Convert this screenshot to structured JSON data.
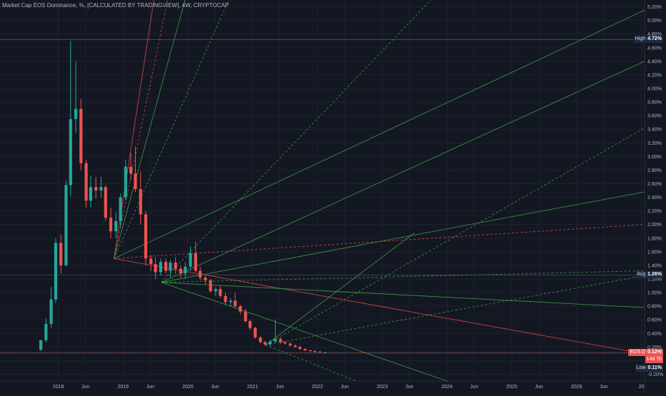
{
  "chart_data": {
    "type": "candlestick",
    "title": "Market Cap EOS Dominance, %",
    "subtitle_parts": [
      "[CALCULATED BY TRADINGVIEW]",
      "4W",
      "CRYPTOCAP"
    ],
    "y_unit": "%",
    "ylim": [
      -0.3,
      5.3
    ],
    "y_ticks": [
      "5.20%",
      "5.00%",
      "4.80%",
      "4.60%",
      "4.40%",
      "4.20%",
      "4.00%",
      "3.80%",
      "3.60%",
      "3.40%",
      "3.20%",
      "3.00%",
      "2.80%",
      "2.60%",
      "2.40%",
      "2.20%",
      "2.00%",
      "1.80%",
      "1.60%",
      "1.40%",
      "1.20%",
      "1.00%",
      "0.80%",
      "0.60%",
      "0.40%",
      "0.20%",
      "0.00%",
      "-0.20%"
    ],
    "y_tick_values": [
      5.2,
      5.0,
      4.8,
      4.6,
      4.4,
      4.2,
      4.0,
      3.8,
      3.6,
      3.4,
      3.2,
      3.0,
      2.8,
      2.6,
      2.4,
      2.2,
      2.0,
      1.8,
      1.6,
      1.4,
      1.2,
      1.0,
      0.8,
      0.6,
      0.4,
      0.2,
      0.0,
      -0.2
    ],
    "x_ticks": [
      "2018",
      "Jun",
      "2019",
      "Jun",
      "2020",
      "Jun",
      "2021",
      "Jun",
      "2022",
      "Jun",
      "2023",
      "Jun",
      "2024",
      "Jun",
      "2025",
      "Jun",
      "2026",
      "Jun",
      "20"
    ],
    "x_tick_values": [
      2018.0,
      2018.42,
      2019.0,
      2019.42,
      2020.0,
      2020.42,
      2021.0,
      2021.42,
      2022.0,
      2022.42,
      2023.0,
      2023.42,
      2024.0,
      2024.42,
      2025.0,
      2025.42,
      2026.0,
      2026.42,
      2027.0
    ],
    "xlim": [
      2017.1,
      2027.05
    ],
    "colors": {
      "up": "#26a69a",
      "down": "#ef5350",
      "bg": "#131722",
      "grid": "#1e2230",
      "text": "#b2b5be",
      "fan_green": "#3b9b45",
      "fan_red": "#e04545",
      "tag_bg": "#1f2a44"
    },
    "candles": [
      {
        "t": 2017.73,
        "o": 0.16,
        "h": 0.3,
        "l": 0.14,
        "c": 0.3
      },
      {
        "t": 2017.81,
        "o": 0.3,
        "h": 0.62,
        "l": 0.27,
        "c": 0.54
      },
      {
        "t": 2017.89,
        "o": 0.54,
        "h": 1.08,
        "l": 0.48,
        "c": 0.9
      },
      {
        "t": 2017.96,
        "o": 0.9,
        "h": 1.8,
        "l": 0.85,
        "c": 1.73
      },
      {
        "t": 2018.04,
        "o": 1.73,
        "h": 1.85,
        "l": 1.28,
        "c": 1.4
      },
      {
        "t": 2018.12,
        "o": 1.4,
        "h": 2.65,
        "l": 1.38,
        "c": 2.58
      },
      {
        "t": 2018.19,
        "o": 2.58,
        "h": 4.7,
        "l": 2.42,
        "c": 3.55
      },
      {
        "t": 2018.27,
        "o": 3.55,
        "h": 4.4,
        "l": 3.35,
        "c": 3.7
      },
      {
        "t": 2018.35,
        "o": 3.7,
        "h": 3.85,
        "l": 2.8,
        "c": 2.9
      },
      {
        "t": 2018.43,
        "o": 2.9,
        "h": 2.95,
        "l": 2.25,
        "c": 2.35
      },
      {
        "t": 2018.5,
        "o": 2.35,
        "h": 2.72,
        "l": 2.25,
        "c": 2.55
      },
      {
        "t": 2018.58,
        "o": 2.55,
        "h": 2.7,
        "l": 2.38,
        "c": 2.5
      },
      {
        "t": 2018.66,
        "o": 2.5,
        "h": 2.7,
        "l": 2.4,
        "c": 2.55
      },
      {
        "t": 2018.73,
        "o": 2.55,
        "h": 2.58,
        "l": 2.05,
        "c": 2.1
      },
      {
        "t": 2018.81,
        "o": 2.1,
        "h": 2.25,
        "l": 1.8,
        "c": 1.9
      },
      {
        "t": 2018.89,
        "o": 1.9,
        "h": 2.18,
        "l": 1.8,
        "c": 2.05
      },
      {
        "t": 2018.96,
        "o": 2.05,
        "h": 2.45,
        "l": 1.95,
        "c": 2.4
      },
      {
        "t": 2019.04,
        "o": 2.4,
        "h": 2.95,
        "l": 2.35,
        "c": 2.85
      },
      {
        "t": 2019.12,
        "o": 2.85,
        "h": 3.05,
        "l": 2.65,
        "c": 2.75
      },
      {
        "t": 2019.19,
        "o": 2.75,
        "h": 3.15,
        "l": 2.48,
        "c": 2.52
      },
      {
        "t": 2019.27,
        "o": 2.52,
        "h": 2.78,
        "l": 2.0,
        "c": 2.15
      },
      {
        "t": 2019.35,
        "o": 2.15,
        "h": 2.2,
        "l": 1.4,
        "c": 1.5
      },
      {
        "t": 2019.43,
        "o": 1.5,
        "h": 1.55,
        "l": 1.32,
        "c": 1.42
      },
      {
        "t": 2019.5,
        "o": 1.42,
        "h": 1.52,
        "l": 1.2,
        "c": 1.3
      },
      {
        "t": 2019.58,
        "o": 1.3,
        "h": 1.5,
        "l": 1.25,
        "c": 1.45
      },
      {
        "t": 2019.66,
        "o": 1.45,
        "h": 1.5,
        "l": 1.28,
        "c": 1.32
      },
      {
        "t": 2019.73,
        "o": 1.32,
        "h": 1.48,
        "l": 1.22,
        "c": 1.44
      },
      {
        "t": 2019.81,
        "o": 1.44,
        "h": 1.52,
        "l": 1.28,
        "c": 1.35
      },
      {
        "t": 2019.89,
        "o": 1.35,
        "h": 1.4,
        "l": 1.22,
        "c": 1.28
      },
      {
        "t": 2019.96,
        "o": 1.28,
        "h": 1.45,
        "l": 1.2,
        "c": 1.38
      },
      {
        "t": 2020.04,
        "o": 1.38,
        "h": 1.68,
        "l": 1.32,
        "c": 1.58
      },
      {
        "t": 2020.12,
        "o": 1.58,
        "h": 1.75,
        "l": 1.3,
        "c": 1.32
      },
      {
        "t": 2020.19,
        "o": 1.32,
        "h": 1.38,
        "l": 1.18,
        "c": 1.22
      },
      {
        "t": 2020.27,
        "o": 1.22,
        "h": 1.25,
        "l": 1.12,
        "c": 1.18
      },
      {
        "t": 2020.35,
        "o": 1.18,
        "h": 1.2,
        "l": 1.0,
        "c": 1.02
      },
      {
        "t": 2020.43,
        "o": 1.02,
        "h": 1.08,
        "l": 0.95,
        "c": 1.05
      },
      {
        "t": 2020.5,
        "o": 1.05,
        "h": 1.1,
        "l": 0.92,
        "c": 0.95
      },
      {
        "t": 2020.58,
        "o": 0.95,
        "h": 1.0,
        "l": 0.82,
        "c": 0.86
      },
      {
        "t": 2020.66,
        "o": 0.86,
        "h": 0.92,
        "l": 0.8,
        "c": 0.88
      },
      {
        "t": 2020.73,
        "o": 0.88,
        "h": 1.0,
        "l": 0.78,
        "c": 0.8
      },
      {
        "t": 2020.81,
        "o": 0.8,
        "h": 0.82,
        "l": 0.68,
        "c": 0.72
      },
      {
        "t": 2020.89,
        "o": 0.72,
        "h": 0.76,
        "l": 0.56,
        "c": 0.58
      },
      {
        "t": 2020.96,
        "o": 0.58,
        "h": 0.6,
        "l": 0.45,
        "c": 0.48
      },
      {
        "t": 2021.04,
        "o": 0.48,
        "h": 0.5,
        "l": 0.32,
        "c": 0.34
      },
      {
        "t": 2021.12,
        "o": 0.34,
        "h": 0.36,
        "l": 0.26,
        "c": 0.27
      },
      {
        "t": 2021.19,
        "o": 0.27,
        "h": 0.29,
        "l": 0.22,
        "c": 0.24
      },
      {
        "t": 2021.27,
        "o": 0.24,
        "h": 0.3,
        "l": 0.21,
        "c": 0.28
      },
      {
        "t": 2021.35,
        "o": 0.28,
        "h": 0.6,
        "l": 0.27,
        "c": 0.32
      },
      {
        "t": 2021.43,
        "o": 0.32,
        "h": 0.34,
        "l": 0.25,
        "c": 0.27
      },
      {
        "t": 2021.5,
        "o": 0.27,
        "h": 0.29,
        "l": 0.24,
        "c": 0.25
      },
      {
        "t": 2021.58,
        "o": 0.25,
        "h": 0.27,
        "l": 0.21,
        "c": 0.22
      },
      {
        "t": 2021.66,
        "o": 0.22,
        "h": 0.24,
        "l": 0.19,
        "c": 0.2
      },
      {
        "t": 2021.73,
        "o": 0.2,
        "h": 0.22,
        "l": 0.16,
        "c": 0.17
      },
      {
        "t": 2021.81,
        "o": 0.17,
        "h": 0.18,
        "l": 0.14,
        "c": 0.15
      },
      {
        "t": 2021.89,
        "o": 0.15,
        "h": 0.16,
        "l": 0.13,
        "c": 0.14
      },
      {
        "t": 2021.96,
        "o": 0.14,
        "h": 0.15,
        "l": 0.12,
        "c": 0.13
      },
      {
        "t": 2022.04,
        "o": 0.13,
        "h": 0.14,
        "l": 0.12,
        "c": 0.12
      },
      {
        "t": 2022.12,
        "o": 0.12,
        "h": 0.13,
        "l": 0.11,
        "c": 0.12
      }
    ],
    "horizontal_lines": [
      {
        "label": "High",
        "value": 4.72,
        "text": "4.72%"
      },
      {
        "label": "Avg",
        "value": 1.26,
        "text": "1.26%"
      },
      {
        "label": "Low",
        "value": 0.11,
        "text": "0.11%"
      }
    ],
    "current": {
      "label": "EOS.D",
      "value": 0.12,
      "text": "0.12%",
      "countdown": "14d 7h"
    },
    "fans": [
      {
        "name": "fan-a",
        "anchor": [
          2018.86,
          1.5
        ],
        "color": "red",
        "lines": [
          {
            "to": [
              2019.5,
              5.45
            ],
            "style": "solid",
            "color": "red"
          },
          {
            "to": [
              2019.72,
              5.45
            ],
            "style": "dashed",
            "color": "red"
          },
          {
            "to": [
              2020.0,
              5.45
            ],
            "style": "solid",
            "color": "green"
          },
          {
            "to": [
              2020.7,
              5.45
            ],
            "style": "dashed",
            "color": "green"
          },
          {
            "to": [
              2027.05,
              5.15
            ],
            "style": "solid",
            "color": "green"
          },
          {
            "to": [
              2027.05,
              2.0
            ],
            "style": "dashed",
            "color": "red"
          },
          {
            "to": [
              2027.05,
              0.1
            ],
            "style": "solid",
            "color": "red"
          }
        ]
      },
      {
        "name": "fan-b",
        "anchor": [
          2019.59,
          1.15
        ],
        "color": "green",
        "lines": [
          {
            "to": [
              2023.9,
              5.45
            ],
            "style": "dashed",
            "color": "green"
          },
          {
            "to": [
              2027.05,
              4.4
            ],
            "style": "solid",
            "color": "green"
          },
          {
            "to": [
              2027.05,
              2.48
            ],
            "style": "solid",
            "color": "green"
          },
          {
            "to": [
              2027.05,
              1.32
            ],
            "style": "dashed",
            "color": "green"
          },
          {
            "to": [
              2027.05,
              0.78
            ],
            "style": "solid",
            "color": "green"
          },
          {
            "to": [
              2024.0,
              -0.3
            ],
            "style": "solid",
            "color": "green"
          }
        ]
      },
      {
        "name": "fan-c",
        "anchor": [
          2021.2,
          0.23
        ],
        "color": "green",
        "lines": [
          {
            "to": [
              2027.05,
              3.42
            ],
            "style": "dashed",
            "color": "green"
          },
          {
            "to": [
              2027.05,
              1.25
            ],
            "style": "dashed",
            "color": "green"
          },
          {
            "to": [
              2022.6,
              -0.3
            ],
            "style": "dashed",
            "color": "green"
          },
          {
            "to": [
              2023.5,
              1.88
            ],
            "style": "solid",
            "color": "green"
          }
        ]
      }
    ]
  }
}
